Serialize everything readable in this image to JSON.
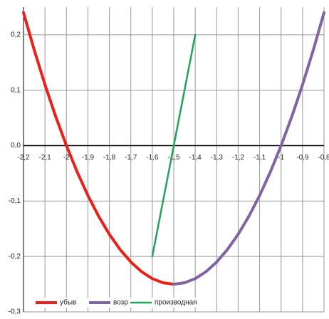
{
  "chart_data": {
    "type": "line",
    "series": [
      {
        "name": "убыв",
        "color": "#e8221b",
        "x": [
          -2.2,
          -2.15,
          -2.1,
          -2.05,
          -2.0,
          -1.95,
          -1.9,
          -1.85,
          -1.8,
          -1.75,
          -1.7,
          -1.65,
          -1.6,
          -1.55,
          -1.5
        ],
        "values": [
          0.24,
          0.1725,
          0.11,
          0.0525,
          0,
          -0.0475,
          -0.09,
          -0.1275,
          -0.16,
          -0.1875,
          -0.21,
          -0.2275,
          -0.24,
          -0.2475,
          -0.25
        ],
        "width": 4
      },
      {
        "name": "возр",
        "color": "#8064a2",
        "x": [
          -1.5,
          -1.45,
          -1.4,
          -1.35,
          -1.3,
          -1.25,
          -1.2,
          -1.15,
          -1.1,
          -1.05,
          -1.0,
          -0.95,
          -0.9,
          -0.85,
          -0.8
        ],
        "values": [
          -0.25,
          -0.2475,
          -0.24,
          -0.2275,
          -0.21,
          -0.1875,
          -0.16,
          -0.1275,
          -0.09,
          -0.0475,
          0,
          0.0525,
          0.11,
          0.1725,
          0.24
        ],
        "width": 4
      },
      {
        "name": "производная",
        "color": "#22a35a",
        "x": [
          -1.6,
          -1.4
        ],
        "values": [
          -0.2,
          0.2
        ],
        "width": 2.5
      }
    ],
    "xlim": [
      -2.2,
      -0.8
    ],
    "ylim": [
      -0.3,
      0.25
    ],
    "xticks": [
      {
        "value": -2.2,
        "label": "-2,2"
      },
      {
        "value": -2.1,
        "label": "-2,1"
      },
      -2,
      {
        "value": -1.9,
        "label": "-1,9"
      },
      {
        "value": -1.8,
        "label": "-1,8"
      },
      {
        "value": -1.7,
        "label": "-1,7"
      },
      {
        "value": -1.6,
        "label": "-1,6"
      },
      {
        "value": -1.5,
        "label": "-1,5"
      },
      {
        "value": -1.4,
        "label": "-1,4"
      },
      {
        "value": -1.3,
        "label": "-1,3"
      },
      {
        "value": -1.2,
        "label": "-1,2"
      },
      {
        "value": -1.1,
        "label": "-1,1"
      },
      -1,
      {
        "value": -0.9,
        "label": "-0,9"
      },
      {
        "value": -0.8,
        "label": "-0,8"
      }
    ],
    "yticks": [
      {
        "value": 0.2,
        "label": "0,2"
      },
      {
        "value": 0.1,
        "label": "0,1"
      },
      {
        "value": 0,
        "label": "0,0"
      },
      {
        "value": -0.1,
        "label": "-0,1"
      },
      {
        "value": -0.2,
        "label": "-0,2"
      },
      {
        "value": -0.3,
        "label": "-0,3"
      }
    ],
    "grid": true,
    "legend": "bottom-left"
  }
}
